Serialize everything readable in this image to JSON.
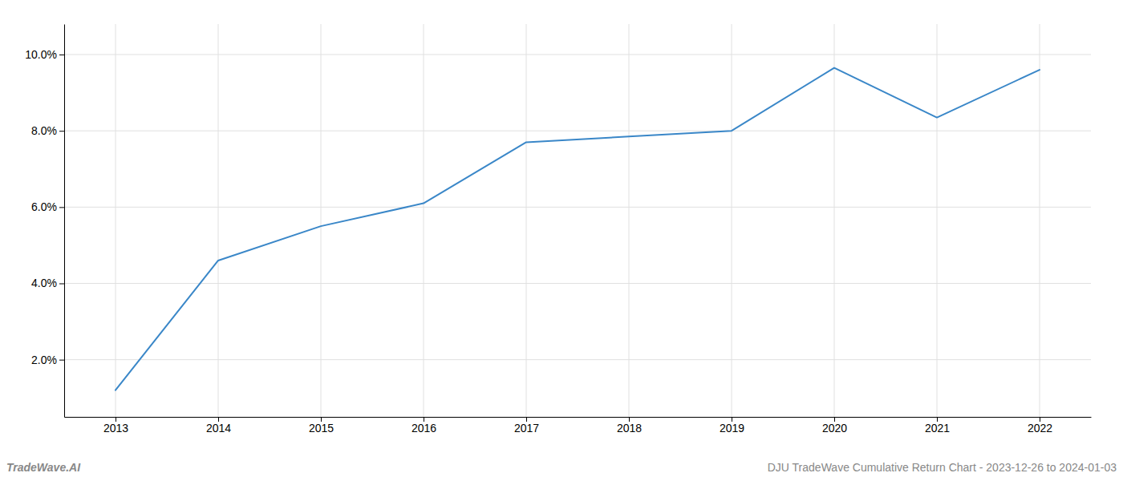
{
  "chart_data": {
    "type": "line",
    "x": [
      2013,
      2014,
      2015,
      2016,
      2017,
      2018,
      2019,
      2020,
      2021,
      2022
    ],
    "values": [
      1.2,
      4.6,
      5.5,
      6.1,
      7.7,
      7.85,
      8.0,
      9.65,
      8.35,
      9.6
    ],
    "color": "#3a87c8",
    "xlim": [
      2012.5,
      2022.5
    ],
    "ylim": [
      0.5,
      10.8
    ],
    "xticks": [
      2013,
      2014,
      2015,
      2016,
      2017,
      2018,
      2019,
      2020,
      2021,
      2022
    ],
    "yticks": [
      {
        "value": 2.0,
        "label": "2.0%"
      },
      {
        "value": 4.0,
        "label": "4.0%"
      },
      {
        "value": 6.0,
        "label": "6.0%"
      },
      {
        "value": 8.0,
        "label": "8.0%"
      },
      {
        "value": 10.0,
        "label": "10.0%"
      }
    ],
    "grid": true,
    "annotations": [
      "TradeWave.AI",
      "DJU TradeWave Cumulative Return Chart - 2023-12-26 to 2024-01-03"
    ]
  }
}
